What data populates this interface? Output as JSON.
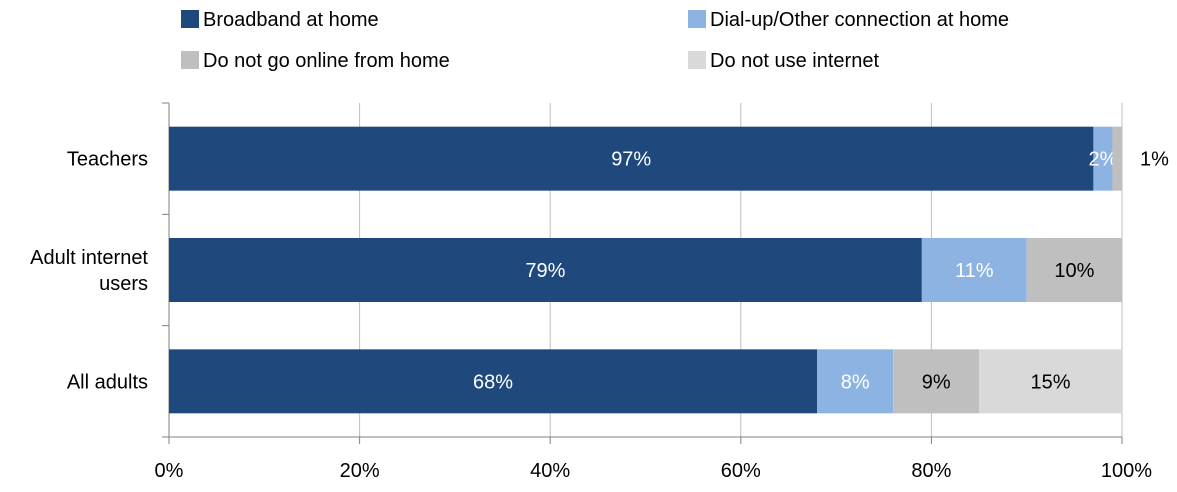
{
  "chart_data": {
    "type": "bar",
    "orientation": "horizontal",
    "stacked": true,
    "categories": [
      "Teachers",
      "Adult internet users",
      "All adults"
    ],
    "category_lines": [
      [
        "Teachers"
      ],
      [
        "Adult internet",
        "users"
      ],
      [
        "All adults"
      ]
    ],
    "series": [
      {
        "name": "Broadband at home",
        "color": "#1f497d",
        "label_color": "#ffffff",
        "values": [
          97,
          79,
          68
        ],
        "labels": [
          "97%",
          "79%",
          "68%"
        ]
      },
      {
        "name": "Dial-up/Other connection at home",
        "color": "#8db3e2",
        "label_color": "#ffffff",
        "values": [
          2,
          11,
          8
        ],
        "labels": [
          "2%",
          "11%",
          "8%"
        ]
      },
      {
        "name": "Do not go online from home",
        "color": "#bfbfbf",
        "label_color": "#000000",
        "values": [
          1,
          10,
          9
        ],
        "labels": [
          "1%",
          "10%",
          "9%"
        ]
      },
      {
        "name": "Do not use internet",
        "color": "#d9d9d9",
        "label_color": "#000000",
        "values": [
          0,
          0,
          15
        ],
        "labels": [
          "",
          "",
          "15%"
        ]
      }
    ],
    "x_ticks": [
      "0%",
      "20%",
      "40%",
      "60%",
      "80%",
      "100%"
    ],
    "xlim": [
      0,
      100
    ],
    "grid": true,
    "legend_position": "top"
  }
}
